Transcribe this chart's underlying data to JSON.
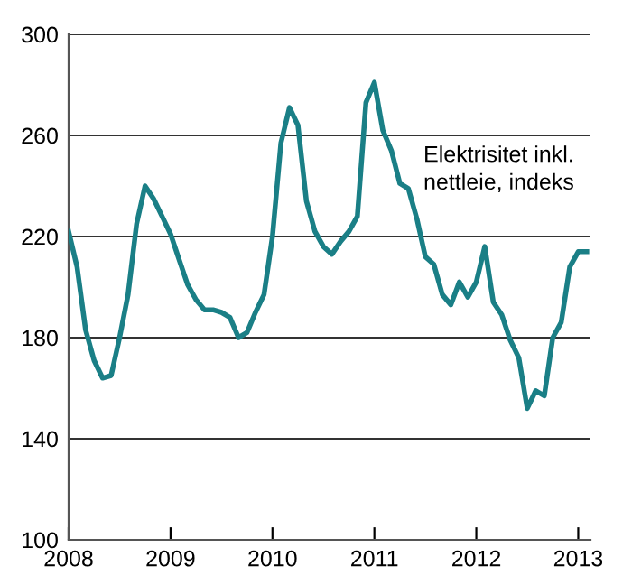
{
  "chart_data": {
    "type": "line",
    "annotations": [
      "Elektrisitet inkl.\nnettleie, indeks"
    ],
    "x": [
      2008.0,
      2008.083,
      2008.167,
      2008.25,
      2008.333,
      2008.417,
      2008.5,
      2008.583,
      2008.667,
      2008.75,
      2008.833,
      2008.917,
      2009.0,
      2009.083,
      2009.167,
      2009.25,
      2009.333,
      2009.417,
      2009.5,
      2009.583,
      2009.667,
      2009.75,
      2009.833,
      2009.917,
      2010.0,
      2010.083,
      2010.167,
      2010.25,
      2010.333,
      2010.417,
      2010.5,
      2010.583,
      2010.667,
      2010.75,
      2010.833,
      2010.917,
      2011.0,
      2011.083,
      2011.167,
      2011.25,
      2011.333,
      2011.417,
      2011.5,
      2011.583,
      2011.667,
      2011.75,
      2011.833,
      2011.917,
      2012.0,
      2012.083,
      2012.167,
      2012.25,
      2012.333,
      2012.417,
      2012.5,
      2012.583,
      2012.667,
      2012.75,
      2012.833,
      2012.917,
      2013.0,
      2013.083
    ],
    "series": [
      {
        "color": "#1a7f86",
        "values": [
          222,
          208,
          183,
          171,
          164,
          165,
          180,
          197,
          225,
          240,
          235,
          228,
          221,
          211,
          201,
          195,
          191,
          191,
          190,
          188,
          180,
          182,
          190,
          197,
          220,
          257,
          271,
          264,
          234,
          222,
          216,
          213,
          218,
          222,
          228,
          273,
          281,
          262,
          254,
          241,
          239,
          227,
          212,
          209,
          197,
          193,
          202,
          196,
          202,
          216,
          194,
          189,
          179,
          172,
          152,
          159,
          157,
          180,
          186,
          208,
          214,
          214
        ]
      }
    ],
    "xlim": [
      2008,
      2013.12
    ],
    "xticks": [
      2008,
      2009,
      2010,
      2011,
      2012,
      2013
    ],
    "ylim": [
      100,
      300
    ],
    "yticks": [
      100,
      140,
      180,
      220,
      260,
      300
    ],
    "grid": "y",
    "legend": false,
    "marker": "none",
    "line_style": "solid"
  }
}
